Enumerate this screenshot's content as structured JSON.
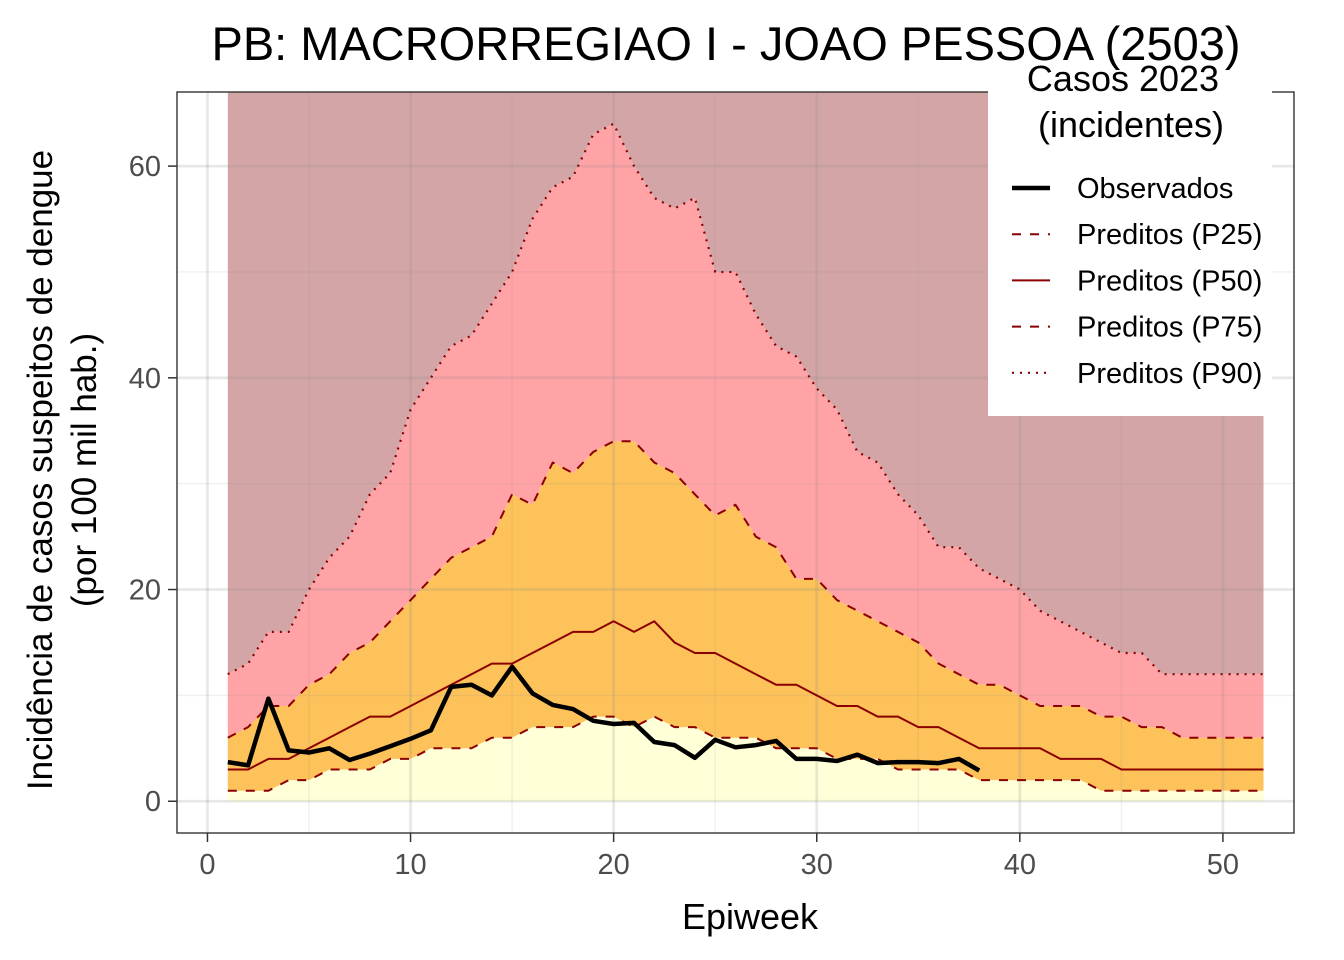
{
  "chart_data": {
    "type": "area",
    "title": "PB: MACRORREGIAO I - JOAO PESSOA (2503)",
    "xlabel": "Epiweek",
    "ylabel_line1": "Incidência de casos suspeitos de dengue",
    "ylabel_line2": "(por 100 mil hab.)",
    "xlim": [
      -1.5,
      53.5
    ],
    "ylim": [
      -3,
      67
    ],
    "x_ticks": [
      0,
      10,
      20,
      30,
      40,
      50
    ],
    "y_ticks": [
      0,
      20,
      40,
      60
    ],
    "x_tick_labels": [
      "0",
      "10",
      "20",
      "30",
      "40",
      "50"
    ],
    "y_tick_labels": [
      "0",
      "20",
      "40",
      "60"
    ],
    "grid": true,
    "legend": {
      "position": "top-right",
      "title_line1": "Casos 2023",
      "title_line2": "(incidentes)",
      "entries": [
        {
          "label": "Observados",
          "style": "solid-thick",
          "color": "#000000"
        },
        {
          "label": "Preditos (P25)",
          "style": "dashed",
          "color": "#8b0000"
        },
        {
          "label": "Preditos (P50)",
          "style": "solid",
          "color": "#8b0000"
        },
        {
          "label": "Preditos (P75)",
          "style": "dashed",
          "color": "#8b0000"
        },
        {
          "label": "Preditos (P90)",
          "style": "dotted",
          "color": "#8b0000"
        }
      ]
    },
    "colors": {
      "band_top": "#d4a5a7",
      "band_p75_p90": "#ffa3a6",
      "band_p25_p75": "#fdc25a",
      "band_below_p25": "#ffffd8",
      "predicted_line": "#8b0000",
      "observed_line": "#000000"
    },
    "x": [
      1,
      2,
      3,
      4,
      5,
      6,
      7,
      8,
      9,
      10,
      11,
      12,
      13,
      14,
      15,
      16,
      17,
      18,
      19,
      20,
      21,
      22,
      23,
      24,
      25,
      26,
      27,
      28,
      29,
      30,
      31,
      32,
      33,
      34,
      35,
      36,
      37,
      38,
      39,
      40,
      41,
      42,
      43,
      44,
      45,
      46,
      47,
      48,
      49,
      50,
      51,
      52
    ],
    "series": [
      {
        "name": "Preditos (P25)",
        "values": [
          1,
          1,
          1,
          2,
          2,
          3,
          3,
          3,
          4,
          4,
          5,
          5,
          5,
          6,
          6,
          7,
          7,
          7,
          8,
          8,
          7,
          8,
          7,
          7,
          6,
          6,
          6,
          5,
          5,
          5,
          4,
          4,
          4,
          3,
          3,
          3,
          3,
          2,
          2,
          2,
          2,
          2,
          2,
          1,
          1,
          1,
          1,
          1,
          1,
          1,
          1,
          1
        ]
      },
      {
        "name": "Preditos (P50)",
        "values": [
          3,
          3,
          4,
          4,
          5,
          6,
          7,
          8,
          8,
          9,
          10,
          11,
          12,
          13,
          13,
          14,
          15,
          16,
          16,
          17,
          16,
          17,
          15,
          14,
          14,
          13,
          12,
          11,
          11,
          10,
          9,
          9,
          8,
          8,
          7,
          7,
          6,
          5,
          5,
          5,
          5,
          4,
          4,
          4,
          3,
          3,
          3,
          3,
          3,
          3,
          3,
          3
        ]
      },
      {
        "name": "Preditos (P75)",
        "values": [
          6,
          7,
          9,
          9,
          11,
          12,
          14,
          15,
          17,
          19,
          21,
          23,
          24,
          25,
          29,
          28,
          32,
          31,
          33,
          34,
          34,
          32,
          31,
          29,
          27,
          28,
          25,
          24,
          21,
          21,
          19,
          18,
          17,
          16,
          15,
          13,
          12,
          11,
          11,
          10,
          9,
          9,
          9,
          8,
          8,
          7,
          7,
          6,
          6,
          6,
          6,
          6
        ]
      },
      {
        "name": "Preditos (P90)",
        "values": [
          12,
          13,
          16,
          16,
          20,
          23,
          25,
          29,
          31,
          37,
          40,
          43,
          44,
          47,
          50,
          55,
          58,
          59,
          63,
          64,
          60,
          57,
          56,
          57,
          50,
          50,
          46,
          43,
          42,
          39,
          37,
          33,
          32,
          29,
          27,
          24,
          24,
          22,
          21,
          20,
          18,
          17,
          16,
          15,
          14,
          14,
          12,
          12,
          12,
          12,
          12,
          12
        ]
      },
      {
        "name": "Observados",
        "x": [
          1,
          2,
          3,
          4,
          5,
          6,
          7,
          8,
          9,
          10,
          11,
          12,
          13,
          14,
          15,
          16,
          17,
          18,
          19,
          20,
          21,
          22,
          23,
          24,
          25,
          26,
          27,
          28,
          29,
          30,
          31,
          32,
          33,
          34,
          35,
          36,
          37,
          38
        ],
        "values": [
          3.7,
          3.4,
          9.7,
          4.8,
          4.6,
          5.0,
          3.9,
          4.5,
          5.2,
          5.9,
          6.7,
          10.8,
          11.0,
          10.0,
          12.7,
          10.2,
          9.1,
          8.7,
          7.6,
          7.3,
          7.4,
          5.6,
          5.3,
          4.1,
          5.8,
          5.1,
          5.3,
          5.7,
          4.0,
          4.0,
          3.8,
          4.4,
          3.6,
          3.7,
          3.7,
          3.6,
          4.0,
          2.9
        ]
      }
    ]
  }
}
